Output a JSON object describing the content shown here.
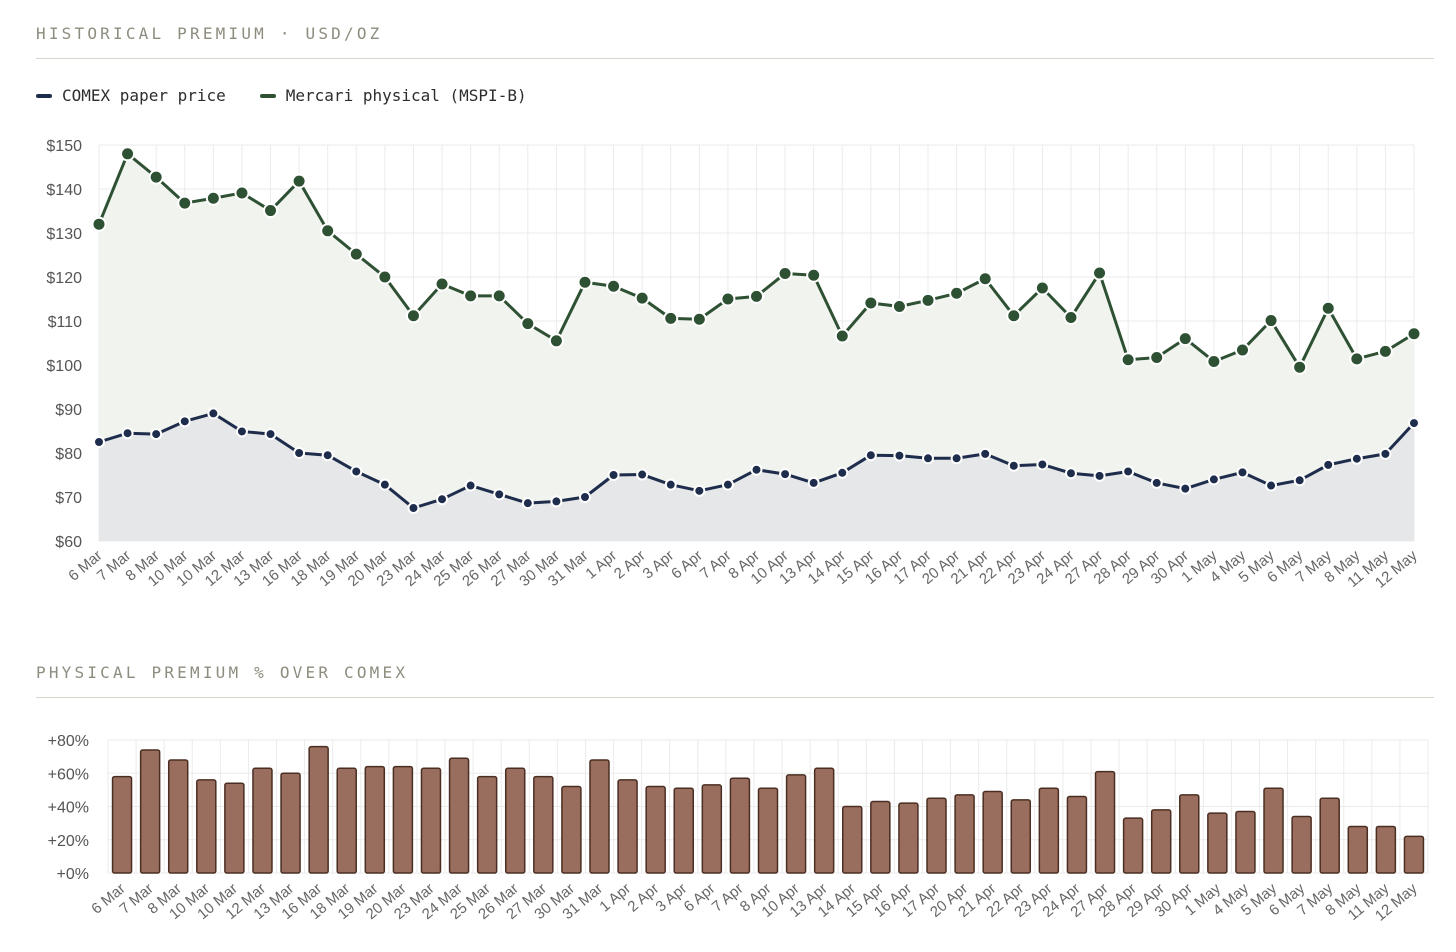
{
  "colors": {
    "comex": "#1f2d4d",
    "mercari": "#2e5033",
    "bar_fill": "#9a6e5e",
    "bar_stroke": "#4a2e22",
    "title": "#8e8c7e"
  },
  "section1": {
    "title": "HISTORICAL PREMIUM · USD/OZ"
  },
  "section2": {
    "title": "PHYSICAL PREMIUM % OVER COMEX"
  },
  "legend": [
    {
      "label": "COMEX paper price",
      "color": "#1f2d4d"
    },
    {
      "label": "Mercari physical (MSPI-B)",
      "color": "#2e5033"
    }
  ],
  "chart_data": [
    {
      "type": "line",
      "title": "HISTORICAL PREMIUM · USD/OZ",
      "ylim": [
        60,
        150
      ],
      "y_ticks": [
        "$60",
        "$70",
        "$80",
        "$90",
        "$100",
        "$110",
        "$120",
        "$130",
        "$140",
        "$150"
      ],
      "y_tick_values": [
        60,
        70,
        80,
        90,
        100,
        110,
        120,
        130,
        140,
        150
      ],
      "grid": true,
      "legend_position": "top-left",
      "categories": [
        "6 Mar",
        "7 Mar",
        "8 Mar",
        "10 Mar",
        "10 Mar",
        "12 Mar",
        "13 Mar",
        "16 Mar",
        "18 Mar",
        "19 Mar",
        "20 Mar",
        "23 Mar",
        "24 Mar",
        "25 Mar",
        "26 Mar",
        "27 Mar",
        "30 Mar",
        "31 Mar",
        "1 Apr",
        "2 Apr",
        "3 Apr",
        "6 Apr",
        "7 Apr",
        "8 Apr",
        "10 Apr",
        "13 Apr",
        "14 Apr",
        "15 Apr",
        "16 Apr",
        "17 Apr",
        "20 Apr",
        "21 Apr",
        "22 Apr",
        "23 Apr",
        "24 Apr",
        "27 Apr",
        "28 Apr",
        "29 Apr",
        "30 Apr",
        "1 May",
        "4 May",
        "5 May",
        "6 May",
        "7 May",
        "8 May",
        "11 May",
        "12 May"
      ],
      "series": [
        {
          "name": "COMEX paper price",
          "values": [
            82.5,
            84.5,
            84.3,
            87.2,
            89,
            84.9,
            84.3,
            80,
            79.5,
            75.8,
            72.8,
            67.5,
            69.5,
            72.6,
            70.6,
            68.6,
            69,
            70,
            75,
            75.1,
            72.8,
            71.4,
            72.8,
            76.2,
            75.2,
            73.2,
            75.5,
            79.5,
            79.4,
            78.8,
            78.8,
            79.8,
            77.1,
            77.4,
            75.4,
            74.8,
            75.8,
            73.2,
            71.9,
            74,
            75.6,
            72.6,
            73.8,
            77.3,
            78.7,
            79.8,
            86.8
          ]
        },
        {
          "name": "Mercari physical (MSPI-B)",
          "values": [
            132,
            148,
            142.7,
            136.8,
            137.9,
            139.1,
            135.1,
            141.8,
            130.5,
            125.2,
            120,
            111.2,
            118.4,
            115.7,
            115.7,
            109.4,
            105.5,
            118.8,
            117.9,
            115.2,
            110.6,
            110.4,
            115,
            115.6,
            120.8,
            120.4,
            106.6,
            114.1,
            113.3,
            114.7,
            116.3,
            119.6,
            111.2,
            117.5,
            110.8,
            120.9,
            101.2,
            101.7,
            106,
            100.8,
            103.4,
            110.1,
            99.5,
            112.9,
            101.4,
            103.1,
            107.1
          ]
        }
      ]
    },
    {
      "type": "bar",
      "title": "PHYSICAL PREMIUM % OVER COMEX",
      "ylim": [
        0,
        80
      ],
      "y_ticks": [
        "+0%",
        "+20%",
        "+40%",
        "+60%",
        "+80%"
      ],
      "y_tick_values": [
        0,
        20,
        40,
        60,
        80
      ],
      "grid": true,
      "categories": [
        "6 Mar",
        "7 Mar",
        "8 Mar",
        "10 Mar",
        "10 Mar",
        "12 Mar",
        "13 Mar",
        "16 Mar",
        "18 Mar",
        "19 Mar",
        "20 Mar",
        "23 Mar",
        "24 Mar",
        "25 Mar",
        "26 Mar",
        "27 Mar",
        "30 Mar",
        "31 Mar",
        "1 Apr",
        "2 Apr",
        "3 Apr",
        "6 Apr",
        "7 Apr",
        "8 Apr",
        "10 Apr",
        "13 Apr",
        "14 Apr",
        "15 Apr",
        "16 Apr",
        "17 Apr",
        "20 Apr",
        "21 Apr",
        "22 Apr",
        "23 Apr",
        "24 Apr",
        "27 Apr",
        "28 Apr",
        "29 Apr",
        "30 Apr",
        "1 May",
        "4 May",
        "5 May",
        "6 May",
        "7 May",
        "8 May",
        "11 May",
        "12 May"
      ],
      "values": [
        58,
        74,
        68,
        56,
        54,
        63,
        60,
        76,
        63,
        64,
        64,
        63,
        69,
        58,
        63,
        58,
        52,
        68,
        56,
        52,
        51,
        53,
        57,
        51,
        59,
        63,
        40,
        43,
        42,
        45,
        47,
        49,
        44,
        51,
        46,
        61,
        33,
        38,
        47,
        36,
        37,
        51,
        34,
        45,
        28,
        28,
        22
      ]
    }
  ]
}
